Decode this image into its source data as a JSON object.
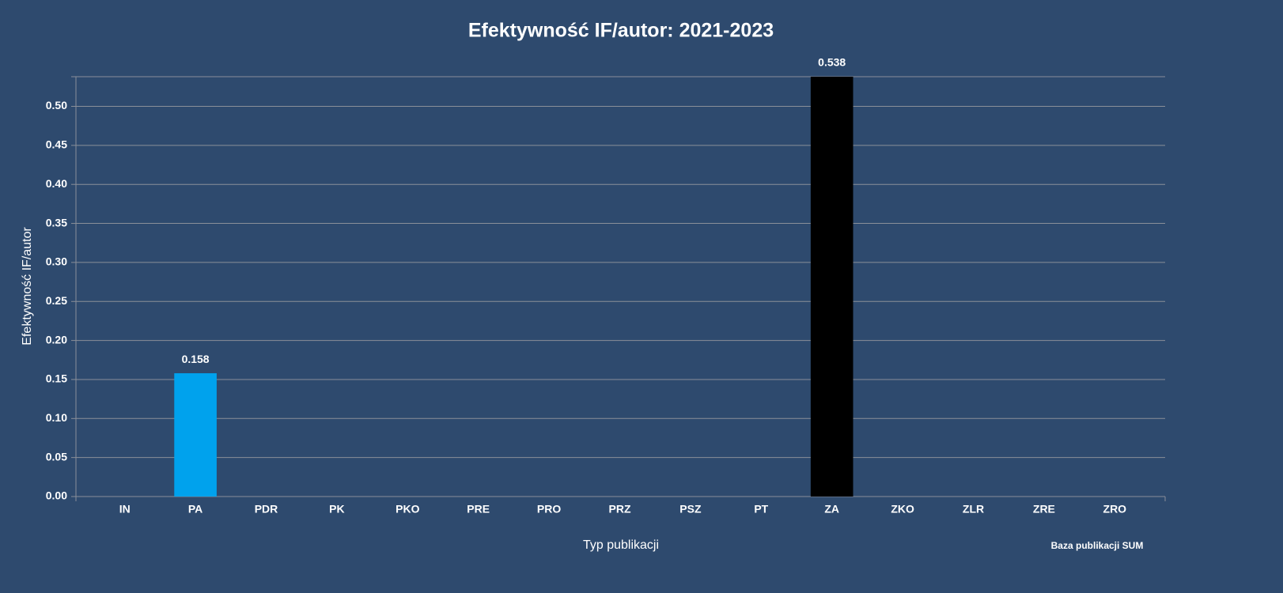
{
  "chart_data": {
    "type": "bar",
    "title": "Efektywność IF/autor: 2021-2023",
    "x_label": "Typ publikacji",
    "y_label": "Efektywność IF/autor",
    "source": "Baza publikacji SUM",
    "categories": [
      "IN",
      "PA",
      "PDR",
      "PK",
      "PKO",
      "PRE",
      "PRO",
      "PRZ",
      "PSZ",
      "PT",
      "ZA",
      "ZKO",
      "ZLR",
      "ZRE",
      "ZRO"
    ],
    "values": [
      0,
      0.158,
      0,
      0,
      0,
      0,
      0,
      0,
      0,
      0,
      0.538,
      0,
      0,
      0,
      0
    ],
    "colors": [
      "#00a2ed",
      "#00a2ed",
      "#00a2ed",
      "#00a2ed",
      "#00a2ed",
      "#00a2ed",
      "#00a2ed",
      "#00a2ed",
      "#00a2ed",
      "#00a2ed",
      "#000000",
      "#00a2ed",
      "#00a2ed",
      "#00a2ed",
      "#00a2ed"
    ],
    "ylim": [
      0,
      0.538
    ],
    "yticks": [
      {
        "value": 0,
        "label": "0.00"
      },
      {
        "value": 0.05,
        "label": "0.05"
      },
      {
        "value": 0.1,
        "label": "0.10"
      },
      {
        "value": 0.15,
        "label": "0.15"
      },
      {
        "value": 0.2,
        "label": "0.20"
      },
      {
        "value": 0.25,
        "label": "0.25"
      },
      {
        "value": 0.3,
        "label": "0.30"
      },
      {
        "value": 0.35,
        "label": "0.35"
      },
      {
        "value": 0.4,
        "label": "0.40"
      },
      {
        "value": 0.45,
        "label": "0.45"
      },
      {
        "value": 0.5,
        "label": "0.50"
      }
    ],
    "grid": true
  }
}
